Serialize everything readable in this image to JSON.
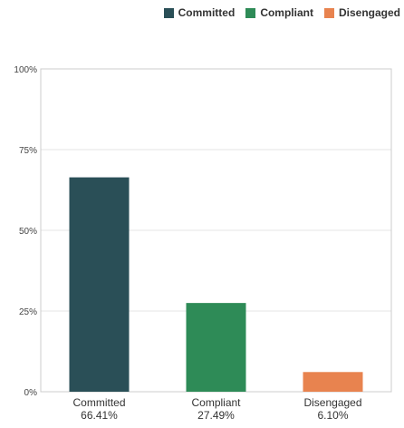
{
  "chart_data": {
    "type": "bar",
    "categories": [
      "Committed",
      "Compliant",
      "Disengaged"
    ],
    "values": [
      66.41,
      27.49,
      6.1
    ],
    "value_labels": [
      "66.41%",
      "27.49%",
      "6.10%"
    ],
    "colors": [
      "#2a4f57",
      "#2e8b57",
      "#e8834f"
    ],
    "ylim": [
      0,
      100
    ],
    "yticks": [
      0,
      25,
      50,
      75,
      100
    ],
    "ytick_labels": [
      "0%",
      "25%",
      "50%",
      "75%",
      "100%"
    ],
    "grid": true,
    "legend_position": "top-right",
    "legend": [
      {
        "label": "Committed",
        "color": "#2a4f57"
      },
      {
        "label": "Compliant",
        "color": "#2e8b57"
      },
      {
        "label": "Disengaged",
        "color": "#e8834f"
      }
    ]
  }
}
